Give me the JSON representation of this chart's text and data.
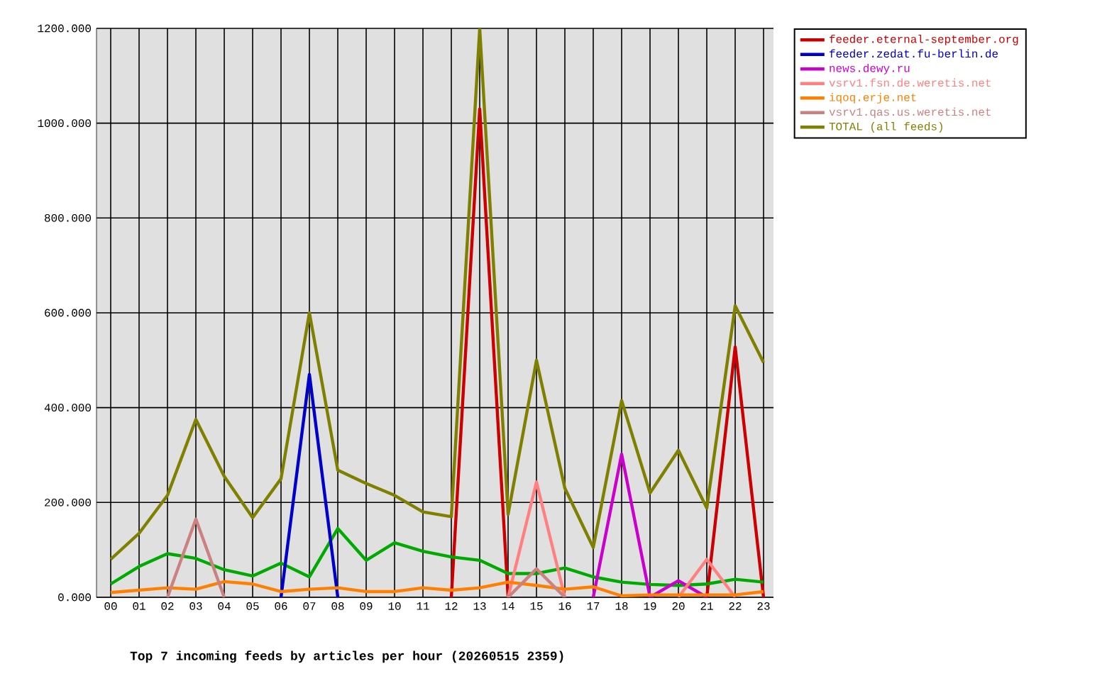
{
  "chart_data": {
    "type": "line",
    "title": "Top 7 incoming feeds by articles per hour (20260515 2359)",
    "categories": [
      "00",
      "01",
      "02",
      "03",
      "04",
      "05",
      "06",
      "07",
      "08",
      "09",
      "10",
      "11",
      "12",
      "13",
      "14",
      "15",
      "16",
      "17",
      "18",
      "19",
      "20",
      "21",
      "22",
      "23"
    ],
    "series": [
      {
        "name": "feeder.eternal-september.org",
        "color": "#cc0000",
        "values": [
          null,
          null,
          null,
          null,
          null,
          null,
          null,
          null,
          null,
          null,
          null,
          null,
          0,
          1030,
          0,
          null,
          null,
          null,
          null,
          null,
          null,
          0,
          528,
          0
        ]
      },
      {
        "color": "#00aa00",
        "values": [
          28,
          65,
          92,
          82,
          58,
          45,
          72,
          43,
          145,
          78,
          115,
          97,
          85,
          78,
          50,
          50,
          62,
          43,
          32,
          27,
          25,
          28,
          38,
          32
        ]
      },
      {
        "name": "feeder.zedat.fu-berlin.de",
        "color": "#0000cc",
        "values": [
          null,
          null,
          null,
          null,
          null,
          null,
          0,
          470,
          0,
          null,
          null,
          null,
          null,
          null,
          null,
          null,
          null,
          null,
          null,
          null,
          null,
          null,
          null,
          null
        ]
      },
      {
        "name": "news.dewy.ru",
        "color": "#cc00cc",
        "values": [
          null,
          null,
          null,
          null,
          null,
          null,
          null,
          null,
          null,
          null,
          null,
          null,
          null,
          null,
          null,
          null,
          null,
          0,
          302,
          0,
          35,
          0,
          null,
          null
        ]
      },
      {
        "name": "vsrv1.fsn.de.weretis.net",
        "color": "#ff8080",
        "values": [
          null,
          null,
          null,
          null,
          null,
          null,
          null,
          null,
          null,
          null,
          null,
          null,
          null,
          null,
          0,
          243,
          0,
          null,
          null,
          null,
          0,
          80,
          0,
          null
        ]
      },
      {
        "name": "iqoq.erje.net",
        "color": "#ff8000",
        "values": [
          10,
          15,
          20,
          17,
          33,
          28,
          12,
          17,
          20,
          12,
          12,
          20,
          15,
          20,
          32,
          25,
          17,
          22,
          3,
          5,
          5,
          5,
          5,
          12
        ]
      },
      {
        "name": "vsrv1.qas.us.weretis.net",
        "color": "#cc8080",
        "values": [
          null,
          null,
          0,
          165,
          0,
          null,
          null,
          null,
          null,
          null,
          null,
          null,
          null,
          null,
          0,
          60,
          0,
          null,
          null,
          null,
          null,
          null,
          null,
          null
        ]
      },
      {
        "name": "TOTAL (all feeds)",
        "color": "#808000",
        "values": [
          80,
          135,
          215,
          375,
          255,
          168,
          250,
          600,
          268,
          240,
          215,
          180,
          170,
          1200,
          175,
          500,
          230,
          105,
          415,
          220,
          310,
          188,
          615,
          495
        ]
      }
    ],
    "ylim": [
      0,
      1200
    ],
    "yticks": [
      {
        "value": 0,
        "label": "0.000"
      },
      {
        "value": 200,
        "label": "200.000"
      },
      {
        "value": 400,
        "label": "400.000"
      },
      {
        "value": 600,
        "label": "600.000"
      },
      {
        "value": 800,
        "label": "800.000"
      },
      {
        "value": 1000,
        "label": "1000.000"
      },
      {
        "value": 1200,
        "label": "1200.000"
      }
    ],
    "grid": true,
    "legend": "top right",
    "marker": "none",
    "line_style": "solid"
  }
}
